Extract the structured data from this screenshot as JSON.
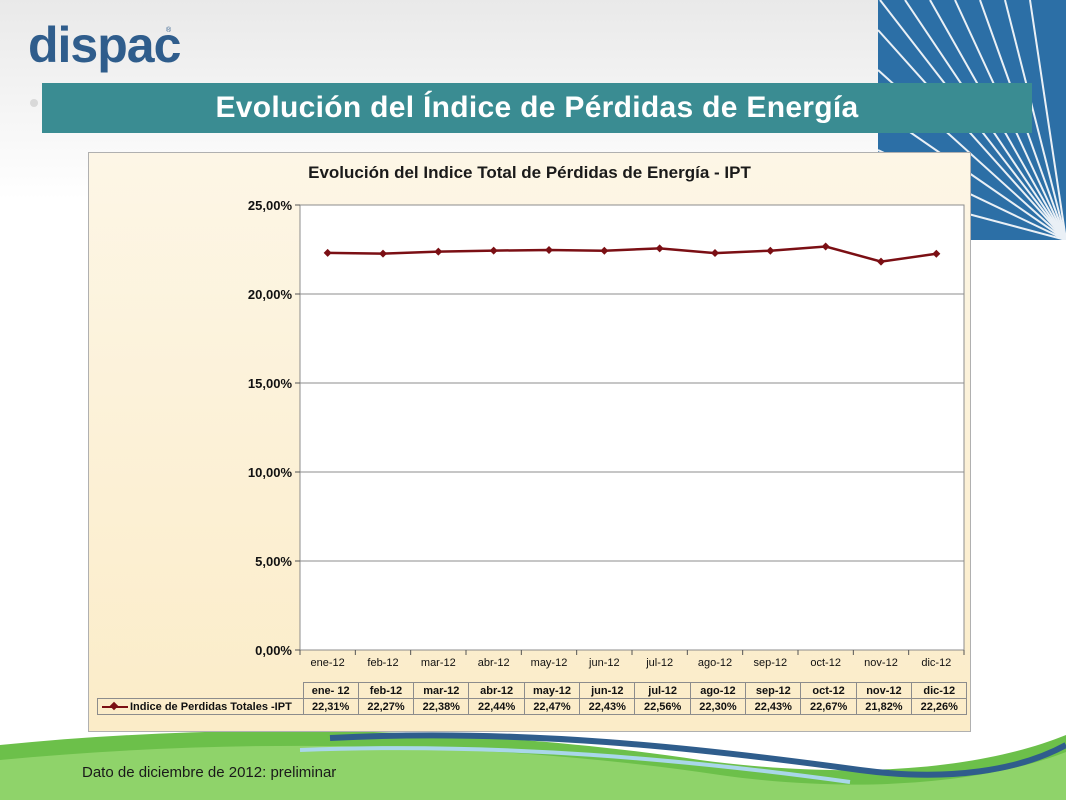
{
  "slide": {
    "title": "Evolución del Índice de Pérdidas de Energía",
    "footnote": "Dato de diciembre de 2012: preliminar",
    "logo_text": "dispac",
    "colors": {
      "title_bar": "#3a8c92",
      "series_line": "#7b0f14",
      "swoosh_green": "#6cc04a",
      "swoosh_blue": "#2f5d8c"
    }
  },
  "chart_data": {
    "type": "line",
    "title": "Evolución del Indice Total de Pérdidas de Energía - IPT",
    "categories": [
      "ene-12",
      "feb-12",
      "mar-12",
      "abr-12",
      "may-12",
      "jun-12",
      "jul-12",
      "ago-12",
      "sep-12",
      "oct-12",
      "nov-12",
      "dic-12"
    ],
    "table_headers": [
      "ene- 12",
      "feb-12",
      "mar-12",
      "abr-12",
      "may-12",
      "jun-12",
      "jul-12",
      "ago-12",
      "sep-12",
      "oct-12",
      "nov-12",
      "dic-12"
    ],
    "series": [
      {
        "name": "Indice de Perdidas Totales -IPT",
        "values": [
          22.31,
          22.27,
          22.38,
          22.44,
          22.47,
          22.43,
          22.56,
          22.3,
          22.43,
          22.67,
          21.82,
          22.26
        ],
        "labels": [
          "22,31%",
          "22,27%",
          "22,38%",
          "22,44%",
          "22,47%",
          "22,43%",
          "22,56%",
          "22,30%",
          "22,43%",
          "22,67%",
          "21,82%",
          "22,26%"
        ]
      }
    ],
    "ylim": [
      0,
      25
    ],
    "yticks": [
      0,
      5,
      10,
      15,
      20,
      25
    ],
    "ytick_labels": [
      "0,00%",
      "5,00%",
      "10,00%",
      "15,00%",
      "20,00%",
      "25,00%"
    ],
    "grid": true,
    "legend": "data-table"
  }
}
